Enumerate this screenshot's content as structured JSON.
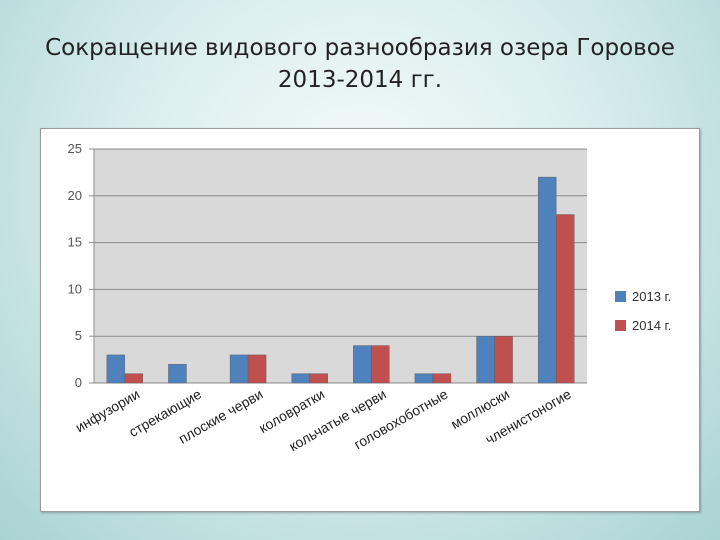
{
  "slide": {
    "title_line1": "Сокращение видового разнообразия озера Горовое",
    "title_line2": "2013-2014 гг."
  },
  "chart_data": {
    "type": "bar",
    "title": "",
    "xlabel": "",
    "ylabel": "",
    "ylim": [
      0,
      25
    ],
    "yticks": [
      0,
      5,
      10,
      15,
      20,
      25
    ],
    "grid": true,
    "legend_position": "right",
    "categories": [
      "инфузории",
      "стрекающие",
      "плоские черви",
      "коловратки",
      "кольчатые черви",
      "головохоботные",
      "моллюски",
      "членистоногие"
    ],
    "series": [
      {
        "name": "2013 г.",
        "color": "#4f81bd",
        "values": [
          3,
          2,
          3,
          1,
          4,
          1,
          5,
          22
        ]
      },
      {
        "name": "2014 г.",
        "color": "#c0504d",
        "values": [
          1,
          0,
          3,
          1,
          4,
          1,
          5,
          18
        ]
      }
    ]
  }
}
